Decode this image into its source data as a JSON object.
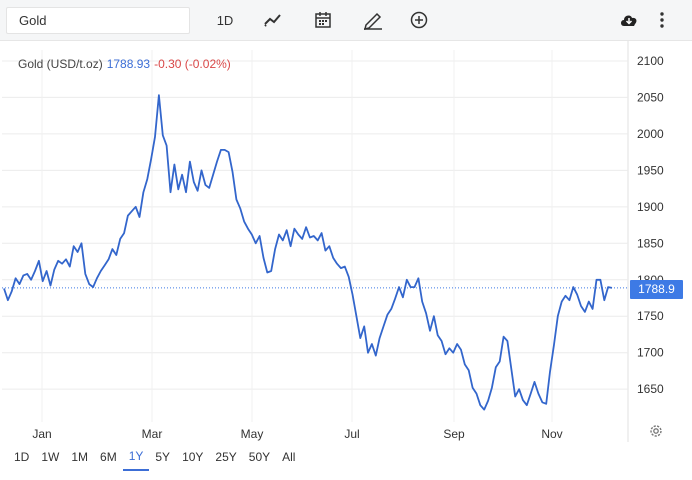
{
  "toolbar": {
    "search_value": "Gold",
    "interval_label": "1D",
    "chart_type_icon": "line-chart-icon",
    "calendar_icon": "calendar-icon",
    "draw_icon": "pencil-icon",
    "compare_icon": "plus-circle-icon",
    "download_icon": "cloud-download-icon",
    "menu_icon": "more-vertical-icon"
  },
  "legend": {
    "name": "Gold (USD/t.oz)",
    "price": "1788.93",
    "change": "-0.30 (-0.02%)"
  },
  "current_price_label": "1788.9",
  "ranges": [
    "1D",
    "1W",
    "1M",
    "6M",
    "1Y",
    "5Y",
    "10Y",
    "25Y",
    "50Y",
    "All"
  ],
  "active_range": "1Y",
  "colors": {
    "line": "#3366cc",
    "accent": "#3d7ae5",
    "negative": "#d94848"
  },
  "chart_data": {
    "type": "line",
    "x_tick_labels": [
      "Jan",
      "Mar",
      "May",
      "Jul",
      "Sep",
      "Nov"
    ],
    "y_ticks": [
      1650,
      1700,
      1750,
      1800,
      1850,
      1900,
      1950,
      2000,
      2050,
      2100
    ],
    "ylim": [
      1605,
      2115
    ],
    "grid": true,
    "current_value": 1788.9,
    "series": [
      {
        "values": [
          1788,
          1772,
          1784,
          1802,
          1794,
          1806,
          1808,
          1800,
          1812,
          1826,
          1798,
          1812,
          1792,
          1814,
          1826,
          1822,
          1828,
          1818,
          1846,
          1838,
          1850,
          1808,
          1794,
          1790,
          1802,
          1812,
          1820,
          1828,
          1842,
          1834,
          1856,
          1864,
          1888,
          1894,
          1900,
          1886,
          1920,
          1938,
          1966,
          1996,
          2053,
          1998,
          1984,
          1920,
          1958,
          1924,
          1944,
          1920,
          1962,
          1934,
          1922,
          1950,
          1930,
          1926,
          1944,
          1962,
          1978,
          1978,
          1975,
          1948,
          1910,
          1898,
          1880,
          1870,
          1862,
          1850,
          1860,
          1830,
          1810,
          1812,
          1842,
          1862,
          1854,
          1868,
          1846,
          1870,
          1862,
          1856,
          1872,
          1858,
          1860,
          1854,
          1864,
          1840,
          1846,
          1830,
          1822,
          1816,
          1818,
          1804,
          1780,
          1750,
          1720,
          1736,
          1700,
          1712,
          1696,
          1720,
          1736,
          1752,
          1760,
          1774,
          1790,
          1776,
          1800,
          1790,
          1790,
          1802,
          1770,
          1754,
          1730,
          1750,
          1724,
          1716,
          1698,
          1706,
          1700,
          1712,
          1704,
          1684,
          1676,
          1652,
          1644,
          1628,
          1622,
          1634,
          1652,
          1680,
          1688,
          1722,
          1716,
          1678,
          1640,
          1650,
          1635,
          1628,
          1644,
          1660,
          1644,
          1632,
          1630,
          1674,
          1710,
          1750,
          1770,
          1778,
          1772,
          1790,
          1780,
          1764,
          1756,
          1770,
          1760,
          1800,
          1800,
          1772,
          1790,
          1788.9
        ]
      }
    ]
  }
}
